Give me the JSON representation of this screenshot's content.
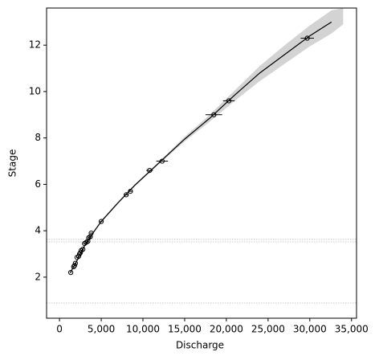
{
  "chart_data": {
    "type": "scatter",
    "xlabel": "Discharge",
    "ylabel": "Stage",
    "xlim": [
      -1550,
      35600
    ],
    "ylim": [
      0.23,
      13.6
    ],
    "xticks": [
      0,
      {
        "value": 5000,
        "label": "5,000"
      },
      {
        "value": 10000,
        "label": "10,000"
      },
      {
        "value": 15000,
        "label": "15,000"
      },
      {
        "value": 20000,
        "label": "20,000"
      },
      {
        "value": 25000,
        "label": "25,000"
      },
      {
        "value": 30000,
        "label": "30,000"
      },
      {
        "value": 35000,
        "label": "35,000"
      }
    ],
    "yticks": [
      2,
      4,
      6,
      8,
      10,
      12
    ],
    "grid": false,
    "series": [
      {
        "color": "#000000",
        "x": [
          1350,
          1700,
          1800,
          1900,
          2100,
          2300,
          2400,
          2500,
          2600,
          2800,
          3000,
          3200,
          3400,
          3500,
          3700,
          3800,
          5000,
          8000,
          8500,
          10800,
          12300,
          18500,
          20300,
          29700
        ],
        "y": [
          2.2,
          2.45,
          2.5,
          2.6,
          2.85,
          2.9,
          3.0,
          3.05,
          3.15,
          3.2,
          3.45,
          3.5,
          3.55,
          3.7,
          3.75,
          3.9,
          4.4,
          5.55,
          5.7,
          6.6,
          7.0,
          9.0,
          9.6,
          12.3
        ],
        "xerr": [
          80,
          80,
          80,
          80,
          100,
          100,
          100,
          100,
          100,
          100,
          150,
          150,
          150,
          150,
          150,
          150,
          150,
          250,
          250,
          400,
          700,
          1000,
          700,
          800
        ]
      }
    ],
    "fit": {
      "color": "#000000",
      "x": [
        1300,
        2000,
        3000,
        4000,
        5000,
        7000,
        9000,
        12000,
        15000,
        18000,
        21000,
        24000,
        27000,
        30000,
        32600
      ],
      "y": [
        2.2,
        2.65,
        3.35,
        3.9,
        4.4,
        5.2,
        5.95,
        6.95,
        7.95,
        8.85,
        9.85,
        10.8,
        11.6,
        12.4,
        13.0
      ]
    },
    "band": {
      "color": "#d3d3d3",
      "x": [
        1300,
        2000,
        3000,
        4000,
        5000,
        7000,
        9000,
        12000,
        15000,
        18000,
        21000,
        24000,
        27000,
        30000,
        32600,
        34000
      ],
      "lower": [
        2.15,
        2.6,
        3.3,
        3.85,
        4.35,
        5.15,
        5.9,
        6.9,
        7.85,
        8.7,
        9.6,
        10.45,
        11.2,
        11.95,
        12.5,
        12.9
      ],
      "upper": [
        2.25,
        2.7,
        3.4,
        3.95,
        4.45,
        5.25,
        6.0,
        7.0,
        8.05,
        9.0,
        10.05,
        11.1,
        12.0,
        12.85,
        13.5,
        13.6
      ]
    },
    "hlines": [
      0.89,
      3.52,
      3.63
    ],
    "hline_color": "#c8c8c8"
  }
}
